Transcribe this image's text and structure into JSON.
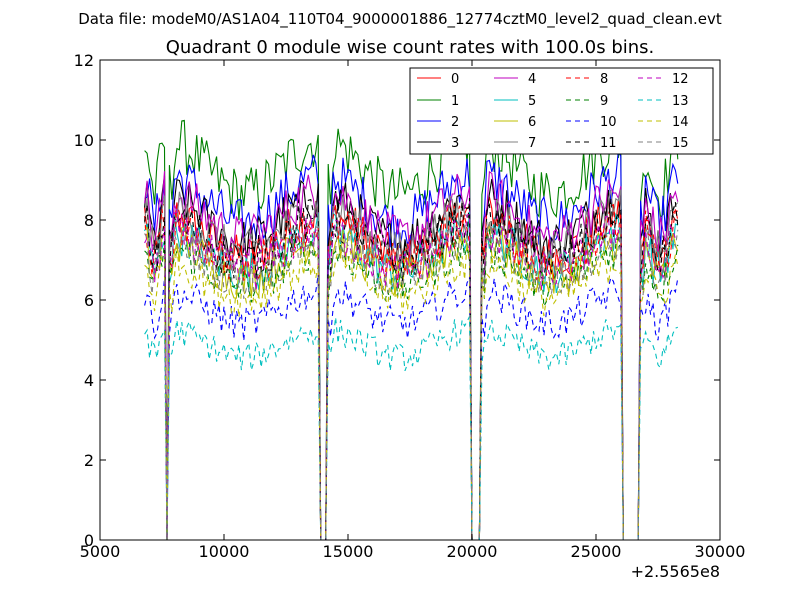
{
  "figure": {
    "supertitle": "Data file: modeM0/AS1A04_110T04_9000001886_12774cztM0_level2_quad_clean.evt"
  },
  "chart_data": {
    "type": "line",
    "title": "Quadrant 0 module wise count rates with 100.0s bins.",
    "xlabel": "",
    "ylabel": "",
    "x_offset_label": "+2.5565e8",
    "xlim": [
      5000,
      30000
    ],
    "ylim": [
      0,
      12
    ],
    "x_ticks": [
      5000,
      10000,
      15000,
      20000,
      25000,
      30000
    ],
    "y_ticks": [
      0,
      2,
      4,
      6,
      8,
      10,
      12
    ],
    "grid": false,
    "legend_position": "top-right",
    "legend_columns": 4,
    "x_note": "x is offset from 2.5565e8 s; 100 s bins",
    "series": [
      {
        "name": "0",
        "color": "#ff0000",
        "dash": "solid",
        "level": 7.6
      },
      {
        "name": "1",
        "color": "#008000",
        "dash": "solid",
        "level": 9.3
      },
      {
        "name": "2",
        "color": "#0000ff",
        "dash": "solid",
        "level": 8.5
      },
      {
        "name": "3",
        "color": "#000000",
        "dash": "solid",
        "level": 8.0
      },
      {
        "name": "4",
        "color": "#bf00bf",
        "dash": "solid",
        "level": 8.1
      },
      {
        "name": "5",
        "color": "#00bfbf",
        "dash": "solid",
        "level": 7.2
      },
      {
        "name": "6",
        "color": "#bfbf00",
        "dash": "solid",
        "level": 7.0
      },
      {
        "name": "7",
        "color": "#808080",
        "dash": "solid",
        "level": 7.7
      },
      {
        "name": "8",
        "color": "#ff0000",
        "dash": "dashed",
        "level": 7.4
      },
      {
        "name": "9",
        "color": "#008000",
        "dash": "dashed",
        "level": 6.8
      },
      {
        "name": "10",
        "color": "#0000ff",
        "dash": "dashed",
        "level": 5.8
      },
      {
        "name": "11",
        "color": "#000000",
        "dash": "dashed",
        "level": 7.5
      },
      {
        "name": "12",
        "color": "#bf00bf",
        "dash": "dashed",
        "level": 7.2
      },
      {
        "name": "13",
        "color": "#00bfbf",
        "dash": "dashed",
        "level": 4.9
      },
      {
        "name": "14",
        "color": "#bfbf00",
        "dash": "dashed",
        "level": 6.5
      },
      {
        "name": "15",
        "color": "#808080",
        "dash": "dashed",
        "level": 7.0
      }
    ],
    "segments": [
      {
        "start": 6800,
        "end": 7600
      },
      {
        "start": 7800,
        "end": 13800
      },
      {
        "start": 14200,
        "end": 19900
      },
      {
        "start": 20400,
        "end": 26000
      },
      {
        "start": 26800,
        "end": 28300
      }
    ]
  }
}
